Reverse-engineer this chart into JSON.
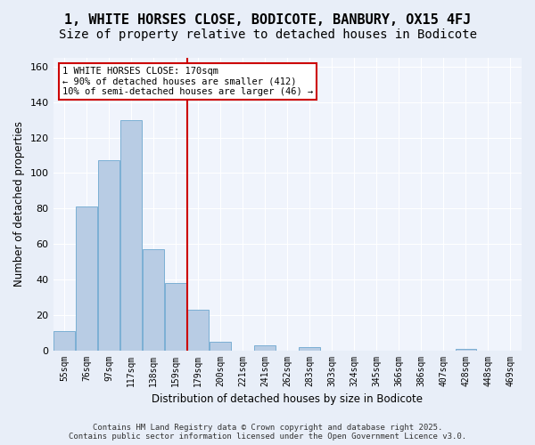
{
  "title": "1, WHITE HORSES CLOSE, BODICOTE, BANBURY, OX15 4FJ",
  "subtitle": "Size of property relative to detached houses in Bodicote",
  "xlabel": "Distribution of detached houses by size in Bodicote",
  "ylabel": "Number of detached properties",
  "bins": [
    "55sqm",
    "76sqm",
    "97sqm",
    "117sqm",
    "138sqm",
    "159sqm",
    "179sqm",
    "200sqm",
    "221sqm",
    "241sqm",
    "262sqm",
    "283sqm",
    "303sqm",
    "324sqm",
    "345sqm",
    "366sqm",
    "386sqm",
    "407sqm",
    "428sqm",
    "448sqm",
    "469sqm"
  ],
  "counts": [
    11,
    81,
    107,
    130,
    57,
    38,
    23,
    5,
    0,
    3,
    0,
    2,
    0,
    0,
    0,
    0,
    0,
    0,
    1,
    0,
    0
  ],
  "bar_color": "#b8cce4",
  "bar_edge_color": "#7bafd4",
  "vline_x_idx": 6,
  "vline_color": "#cc0000",
  "annotation_text": "1 WHITE HORSES CLOSE: 170sqm\n← 90% of detached houses are smaller (412)\n10% of semi-detached houses are larger (46) →",
  "annotation_box_color": "#ffffff",
  "annotation_box_edge": "#cc0000",
  "ylim": [
    0,
    165
  ],
  "yticks": [
    0,
    20,
    40,
    60,
    80,
    100,
    120,
    140,
    160
  ],
  "footnote": "Contains HM Land Registry data © Crown copyright and database right 2025.\nContains public sector information licensed under the Open Government Licence v3.0.",
  "bg_color": "#e8eef8",
  "plot_bg_color": "#f0f4fc",
  "title_fontsize": 11,
  "subtitle_fontsize": 10
}
